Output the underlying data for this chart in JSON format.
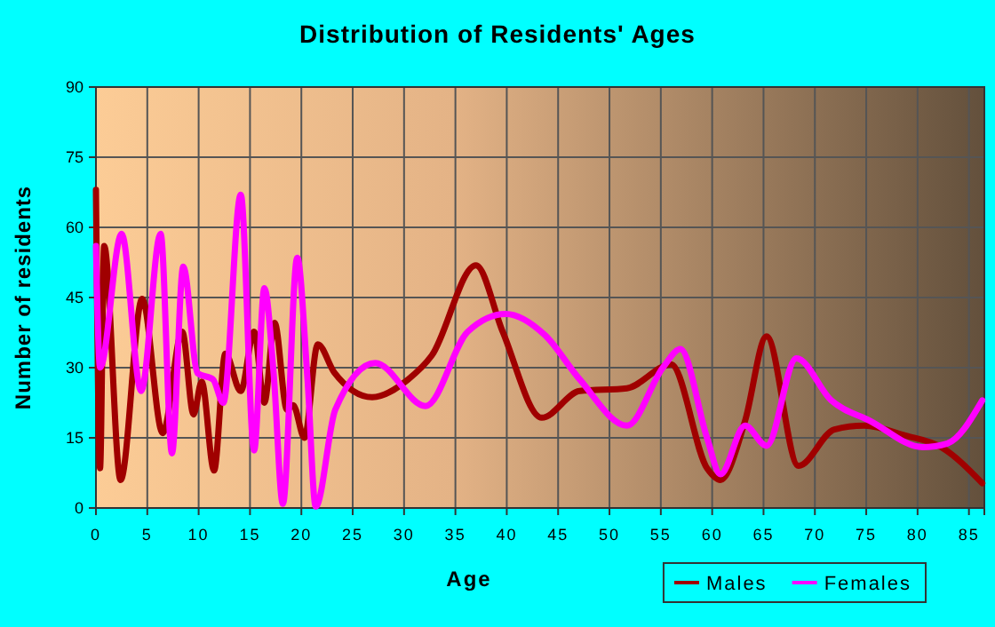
{
  "chart_data": {
    "type": "line",
    "title": "Distribution of Residents' Ages",
    "xlabel": "Age",
    "ylabel": "Number of residents",
    "xlim": [
      0,
      86.5
    ],
    "xticks": [
      0,
      5,
      10,
      15,
      20,
      25,
      30,
      35,
      40,
      45,
      50,
      55,
      60,
      65,
      70,
      75,
      80,
      85
    ],
    "ylim": [
      0,
      90
    ],
    "yticks": [
      0,
      15,
      30,
      45,
      60,
      75,
      90
    ],
    "grid": true,
    "legend": "bottom right",
    "marker": "none",
    "line_style": "solid",
    "series": [
      {
        "name": "Males",
        "color": "#a00000",
        "x": [
          0,
          0.4,
          0.8,
          2.4,
          4.5,
          6.5,
          8.4,
          9.5,
          10.3,
          11.5,
          12.6,
          14.1,
          15.4,
          16.4,
          17.4,
          18.6,
          19.2,
          20.3,
          21.6,
          23.2,
          26.9,
          30.4,
          32.7,
          37,
          39.6,
          43.4,
          47.1,
          51.7,
          56,
          59.5,
          60.8,
          63.2,
          65.3,
          68.4,
          71.9,
          74.8,
          78.8,
          82.3,
          86.3
        ],
        "values": [
          68,
          8.5,
          56,
          6,
          44.7,
          16,
          37.7,
          20,
          27,
          8,
          33,
          25,
          37.7,
          22.5,
          39.6,
          21,
          22,
          15,
          35,
          29,
          23.7,
          27.5,
          32.6,
          51.9,
          37.7,
          19.3,
          25,
          25.6,
          30.7,
          8.5,
          6,
          18.6,
          36.7,
          9,
          16.8,
          17.6,
          15.5,
          13,
          5.3
        ]
      },
      {
        "name": "Females",
        "color": "#ff00ff",
        "x": [
          0,
          0.4,
          2.5,
          4.4,
          6.3,
          7.4,
          8.5,
          9.9,
          11.4,
          12.4,
          14.1,
          15.4,
          16.4,
          17.3,
          18.2,
          19.6,
          20.6,
          21.4,
          23.3,
          27.2,
          32.1,
          36.2,
          39.9,
          43.7,
          47.1,
          51.7,
          55.2,
          56.9,
          59.5,
          60.8,
          63.2,
          65.3,
          68.2,
          71.6,
          75.4,
          80.5,
          82.9,
          86.3
        ],
        "values": [
          56,
          30,
          58.6,
          25,
          58.6,
          11.7,
          51.6,
          28.8,
          27.5,
          22.5,
          67,
          12.3,
          47,
          28.8,
          0.9,
          53.5,
          27.5,
          0.3,
          21,
          31,
          21.8,
          37.7,
          41.5,
          37,
          27.5,
          17.6,
          30,
          34,
          15,
          7.2,
          17.6,
          13.3,
          32,
          23,
          18.6,
          13,
          13.8,
          23
        ]
      }
    ]
  }
}
